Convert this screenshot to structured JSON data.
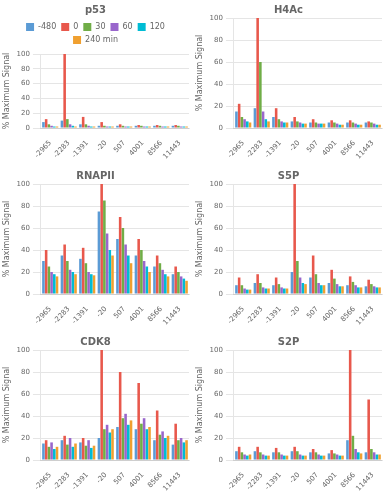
{
  "chart_data": [
    {
      "type": "bar",
      "title": "p53",
      "y_label": "% Maximum Signal",
      "categories": [
        "-2965",
        "-2283",
        "-1391",
        "-20",
        "507",
        "4001",
        "8566",
        "11443"
      ],
      "series": [
        {
          "name": "-480",
          "color": "#5b9bd5",
          "values": [
            8,
            10,
            5,
            3,
            3,
            3,
            3,
            3
          ]
        },
        {
          "name": "0",
          "color": "#e8584c",
          "values": [
            12,
            100,
            15,
            8,
            5,
            4,
            4,
            4
          ]
        },
        {
          "name": "30",
          "color": "#70ad47",
          "values": [
            5,
            12,
            5,
            3,
            3,
            3,
            3,
            3
          ]
        },
        {
          "name": "60",
          "color": "#9966cc",
          "values": [
            3,
            5,
            3,
            2,
            2,
            2,
            2,
            2
          ]
        },
        {
          "name": "120",
          "color": "#00bcd4",
          "values": [
            2,
            3,
            2,
            2,
            2,
            2,
            2,
            2
          ]
        },
        {
          "name": "240 min",
          "color": "#f0a030",
          "values": [
            2,
            2,
            2,
            2,
            2,
            2,
            2,
            2
          ]
        }
      ],
      "ylim": [
        0,
        100
      ],
      "yticks": [
        0,
        20,
        40,
        60,
        80,
        100
      ],
      "grid": true,
      "legend": "top"
    },
    {
      "type": "bar",
      "title": "H4Ac",
      "y_label": "% Maximum Signal",
      "categories": [
        "-2965",
        "-2283",
        "-1391",
        "-20",
        "507",
        "4001",
        "8566",
        "11443"
      ],
      "series": [
        {
          "name": "-480",
          "color": "#5b9bd5",
          "values": [
            15,
            18,
            10,
            6,
            5,
            5,
            5,
            5
          ]
        },
        {
          "name": "0",
          "color": "#e8584c",
          "values": [
            22,
            100,
            18,
            10,
            8,
            7,
            7,
            6
          ]
        },
        {
          "name": "30",
          "color": "#70ad47",
          "values": [
            10,
            60,
            8,
            6,
            5,
            5,
            5,
            5
          ]
        },
        {
          "name": "60",
          "color": "#9966cc",
          "values": [
            8,
            15,
            6,
            5,
            4,
            4,
            4,
            4
          ]
        },
        {
          "name": "120",
          "color": "#00bcd4",
          "values": [
            6,
            8,
            5,
            4,
            4,
            3,
            3,
            3
          ]
        },
        {
          "name": "240 min",
          "color": "#f0a030",
          "values": [
            5,
            6,
            5,
            4,
            4,
            3,
            3,
            3
          ]
        }
      ],
      "ylim": [
        0,
        100
      ],
      "yticks": [
        0,
        20,
        40,
        60,
        80,
        100
      ],
      "grid": true
    },
    {
      "type": "bar",
      "title": "RNAPII",
      "y_label": "% Maximum Signal",
      "categories": [
        "-2965",
        "-2283",
        "-1391",
        "-20",
        "507",
        "4001",
        "8566",
        "11443"
      ],
      "series": [
        {
          "name": "-480",
          "color": "#5b9bd5",
          "values": [
            30,
            35,
            32,
            75,
            50,
            35,
            25,
            18
          ]
        },
        {
          "name": "0",
          "color": "#e8584c",
          "values": [
            40,
            45,
            42,
            100,
            70,
            50,
            35,
            25
          ]
        },
        {
          "name": "30",
          "color": "#70ad47",
          "values": [
            25,
            30,
            28,
            85,
            60,
            40,
            28,
            20
          ]
        },
        {
          "name": "60",
          "color": "#9966cc",
          "values": [
            20,
            22,
            20,
            55,
            45,
            30,
            22,
            16
          ]
        },
        {
          "name": "120",
          "color": "#00bcd4",
          "values": [
            18,
            20,
            18,
            40,
            35,
            25,
            18,
            14
          ]
        },
        {
          "name": "240 min",
          "color": "#f0a030",
          "values": [
            16,
            18,
            17,
            35,
            28,
            20,
            16,
            12
          ]
        }
      ],
      "ylim": [
        0,
        100
      ],
      "yticks": [
        0,
        20,
        40,
        60,
        80,
        100
      ],
      "grid": true
    },
    {
      "type": "bar",
      "title": "S5P",
      "y_label": "% Maximum Signal",
      "categories": [
        "-2965",
        "-2283",
        "-1391",
        "-20",
        "507",
        "4001",
        "8566",
        "11443"
      ],
      "series": [
        {
          "name": "-480",
          "color": "#5b9bd5",
          "values": [
            8,
            10,
            8,
            20,
            15,
            10,
            8,
            7
          ]
        },
        {
          "name": "0",
          "color": "#e8584c",
          "values": [
            15,
            18,
            15,
            100,
            35,
            22,
            16,
            13
          ]
        },
        {
          "name": "30",
          "color": "#70ad47",
          "values": [
            8,
            10,
            9,
            30,
            18,
            14,
            11,
            9
          ]
        },
        {
          "name": "60",
          "color": "#9966cc",
          "values": [
            5,
            6,
            6,
            15,
            10,
            9,
            8,
            7
          ]
        },
        {
          "name": "120",
          "color": "#00bcd4",
          "values": [
            4,
            5,
            5,
            10,
            8,
            7,
            6,
            6
          ]
        },
        {
          "name": "240 min",
          "color": "#f0a030",
          "values": [
            4,
            5,
            5,
            9,
            8,
            7,
            6,
            6
          ]
        }
      ],
      "ylim": [
        0,
        100
      ],
      "yticks": [
        0,
        20,
        40,
        60,
        80,
        100
      ],
      "grid": true
    },
    {
      "type": "bar",
      "title": "CDK8",
      "y_label": "% Maximum Signal",
      "categories": [
        "-2965",
        "-2283",
        "-1391",
        "-20",
        "507",
        "4001",
        "8566",
        "11443"
      ],
      "series": [
        {
          "name": "-480",
          "color": "#5b9bd5",
          "values": [
            15,
            18,
            16,
            20,
            30,
            28,
            18,
            14
          ]
        },
        {
          "name": "0",
          "color": "#e8584c",
          "values": [
            18,
            22,
            20,
            100,
            80,
            70,
            45,
            33
          ]
        },
        {
          "name": "30",
          "color": "#70ad47",
          "values": [
            12,
            14,
            13,
            28,
            38,
            33,
            23,
            18
          ]
        },
        {
          "name": "60",
          "color": "#9966cc",
          "values": [
            16,
            20,
            18,
            32,
            42,
            38,
            26,
            20
          ]
        },
        {
          "name": "120",
          "color": "#00bcd4",
          "values": [
            10,
            12,
            11,
            25,
            32,
            28,
            20,
            16
          ]
        },
        {
          "name": "240 min",
          "color": "#f0a030",
          "values": [
            12,
            15,
            13,
            28,
            36,
            30,
            22,
            18
          ]
        }
      ],
      "ylim": [
        0,
        100
      ],
      "yticks": [
        0,
        20,
        40,
        60,
        80,
        100
      ],
      "grid": true
    },
    {
      "type": "bar",
      "title": "S2P",
      "y_label": "% Maximum Signal",
      "categories": [
        "-2965",
        "-2283",
        "-1391",
        "-20",
        "507",
        "4001",
        "8566",
        "11443"
      ],
      "series": [
        {
          "name": "-480",
          "color": "#5b9bd5",
          "values": [
            8,
            8,
            7,
            8,
            7,
            6,
            18,
            7
          ]
        },
        {
          "name": "0",
          "color": "#e8584c",
          "values": [
            12,
            12,
            11,
            12,
            10,
            9,
            100,
            55
          ]
        },
        {
          "name": "30",
          "color": "#70ad47",
          "values": [
            7,
            7,
            7,
            8,
            7,
            6,
            22,
            10
          ]
        },
        {
          "name": "60",
          "color": "#9966cc",
          "values": [
            5,
            5,
            5,
            5,
            5,
            5,
            10,
            7
          ]
        },
        {
          "name": "120",
          "color": "#00bcd4",
          "values": [
            4,
            4,
            4,
            4,
            4,
            4,
            7,
            5
          ]
        },
        {
          "name": "240 min",
          "color": "#f0a030",
          "values": [
            5,
            4,
            4,
            4,
            4,
            4,
            6,
            5
          ]
        }
      ],
      "ylim": [
        0,
        100
      ],
      "yticks": [
        0,
        20,
        40,
        60,
        80,
        100
      ],
      "grid": true
    }
  ]
}
